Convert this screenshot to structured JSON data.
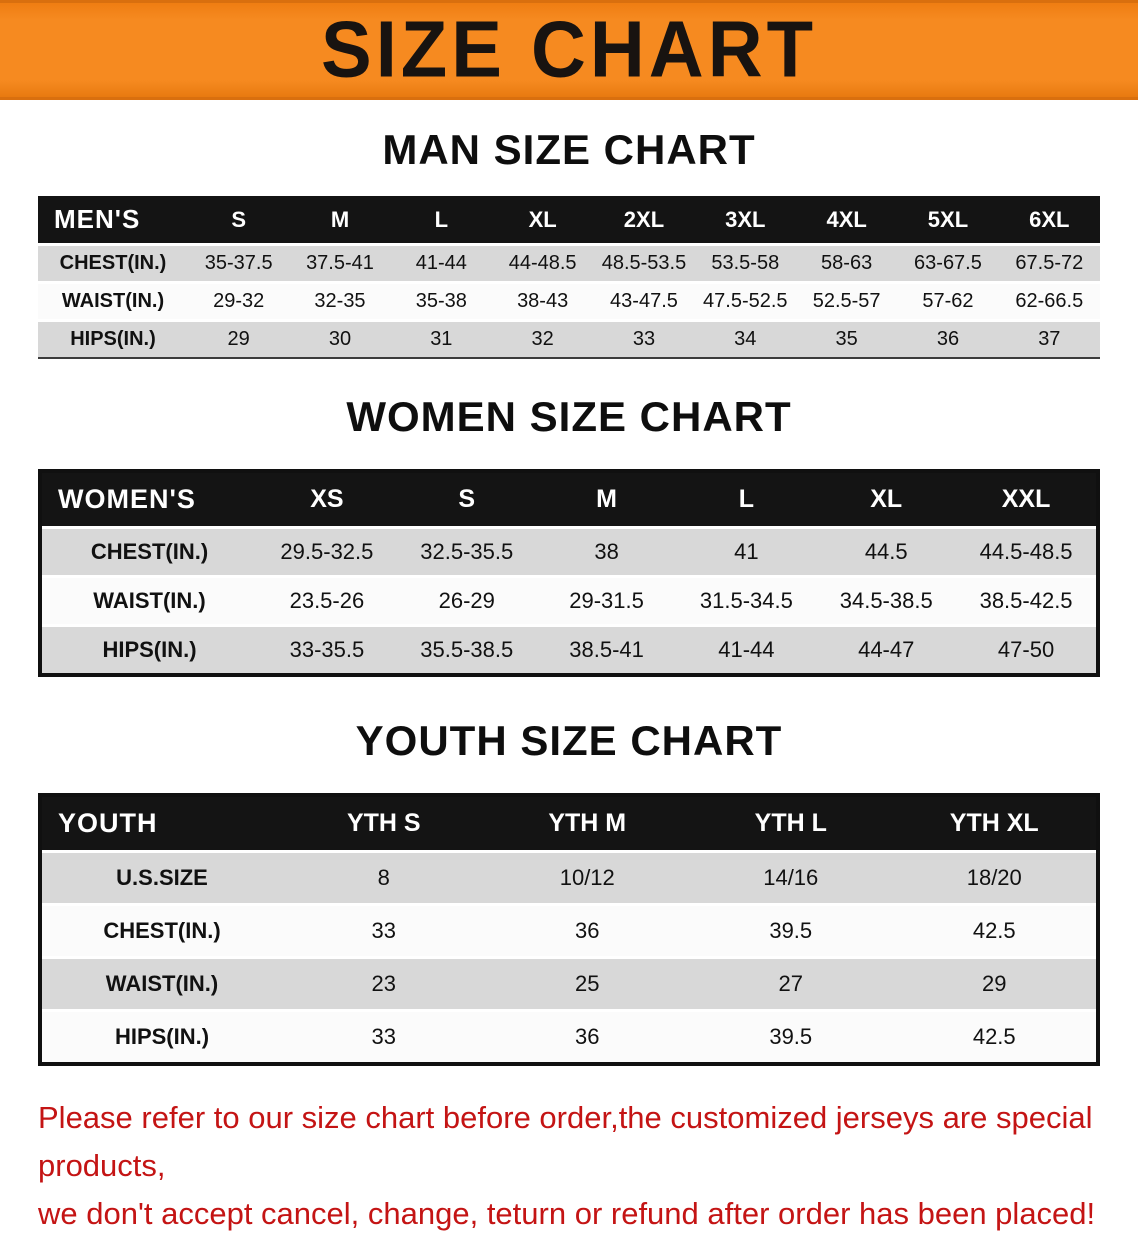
{
  "banner": {
    "title": "SIZE CHART"
  },
  "sections": [
    {
      "id": "men",
      "heading": "MAN SIZE CHART",
      "table": {
        "header": [
          "MEN'S",
          "S",
          "M",
          "L",
          "XL",
          "2XL",
          "3XL",
          "4XL",
          "5XL",
          "6XL"
        ],
        "rows": [
          [
            "CHEST(IN.)",
            "35-37.5",
            "37.5-41",
            "41-44",
            "44-48.5",
            "48.5-53.5",
            "53.5-58",
            "58-63",
            "63-67.5",
            "67.5-72"
          ],
          [
            "WAIST(IN.)",
            "29-32",
            "32-35",
            "35-38",
            "38-43",
            "43-47.5",
            "47.5-52.5",
            "52.5-57",
            "57-62",
            "62-66.5"
          ],
          [
            "HIPS(IN.)",
            "29",
            "30",
            "31",
            "32",
            "33",
            "34",
            "35",
            "36",
            "37"
          ]
        ]
      }
    },
    {
      "id": "women",
      "heading": "WOMEN SIZE CHART",
      "table": {
        "header": [
          "WOMEN'S",
          "XS",
          "S",
          "M",
          "L",
          "XL",
          "XXL"
        ],
        "rows": [
          [
            "CHEST(IN.)",
            "29.5-32.5",
            "32.5-35.5",
            "38",
            "41",
            "44.5",
            "44.5-48.5"
          ],
          [
            "WAIST(IN.)",
            "23.5-26",
            "26-29",
            "29-31.5",
            "31.5-34.5",
            "34.5-38.5",
            "38.5-42.5"
          ],
          [
            "HIPS(IN.)",
            "33-35.5",
            "35.5-38.5",
            "38.5-41",
            "41-44",
            "44-47",
            "47-50"
          ]
        ]
      }
    },
    {
      "id": "youth",
      "heading": "YOUTH SIZE CHART",
      "table": {
        "header": [
          "YOUTH",
          "YTH S",
          "YTH M",
          "YTH L",
          "YTH XL"
        ],
        "rows": [
          [
            "U.S.SIZE",
            "8",
            "10/12",
            "14/16",
            "18/20"
          ],
          [
            "CHEST(IN.)",
            "33",
            "36",
            "39.5",
            "42.5"
          ],
          [
            "WAIST(IN.)",
            "23",
            "25",
            "27",
            "29"
          ],
          [
            "HIPS(IN.)",
            "33",
            "36",
            "39.5",
            "42.5"
          ]
        ]
      }
    }
  ],
  "disclaimer": {
    "line1": "Please refer to our size chart before order,the customized jerseys are special products,",
    "line2": "we don't accept cancel, change, teturn or refund after order has been placed!"
  },
  "colors": {
    "banner_orange": "#f68a20",
    "header_black": "#141414",
    "row_gray": "#d8d8d8",
    "disclaimer_red": "#c41414"
  }
}
